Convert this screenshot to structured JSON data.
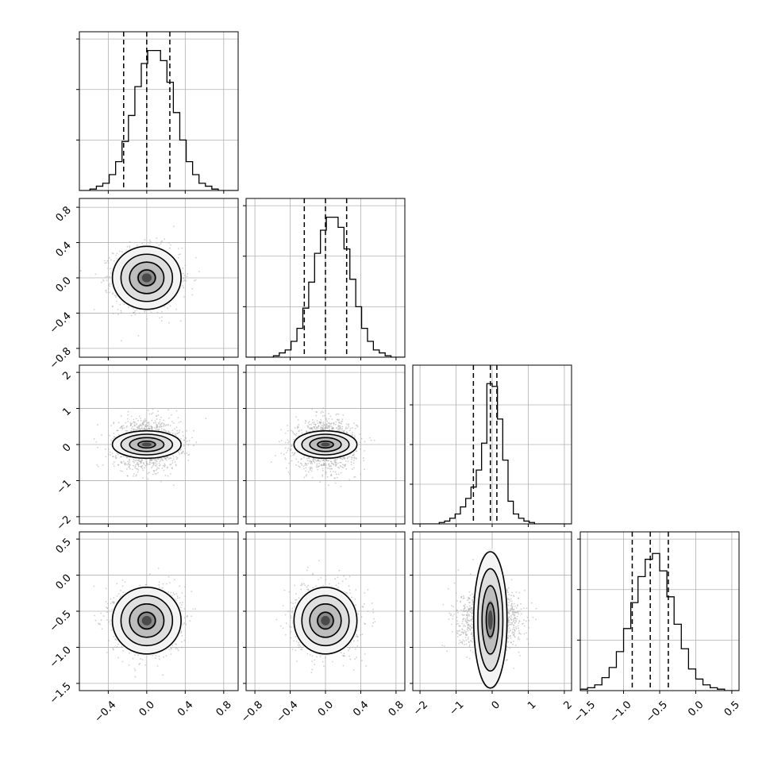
{
  "chart_data": {
    "type": "corner",
    "title": "",
    "ndim": 4,
    "params": [
      {
        "range": [
          -0.7,
          0.95
        ],
        "xticks": [
          -0.4,
          0.0,
          0.4,
          0.8
        ],
        "xtick_labels": [
          "−0.4",
          "0.0",
          "0.4",
          "0.8"
        ],
        "yticks": [
          -0.8,
          -0.4,
          0.0,
          0.4,
          0.8
        ],
        "ytick_labels": [
          "−0.8",
          "−0.4",
          "0.0",
          "0.4",
          "0.8"
        ],
        "mean": 0.0,
        "sigma": 0.17,
        "quantiles": [
          -0.24,
          0.0,
          0.24
        ]
      },
      {
        "range": [
          -0.9,
          0.9
        ],
        "xticks": [
          -0.8,
          -0.4,
          0.0,
          0.4,
          0.8
        ],
        "xtick_labels": [
          "−0.8",
          "−0.4",
          "0.0",
          "0.4",
          "0.8"
        ],
        "yticks": [
          -2,
          -1,
          0,
          1,
          2
        ],
        "ytick_labels": [
          "−2",
          "−1",
          "0",
          "1",
          "2"
        ],
        "mean": 0.0,
        "sigma": 0.17,
        "quantiles": [
          -0.24,
          0.0,
          0.24
        ]
      },
      {
        "range": [
          -2.2,
          2.2
        ],
        "xticks": [
          -2,
          -1,
          0,
          1,
          2
        ],
        "xtick_labels": [
          "−2",
          "−1",
          "0",
          "1",
          "2"
        ],
        "yticks": [
          -1.5,
          -1.0,
          -0.5,
          0.0,
          0.5
        ],
        "ytick_labels": [
          "−1.5",
          "−1.0",
          "−0.5",
          "0.0",
          "0.5"
        ],
        "mean": 0.0,
        "sigma": 0.33,
        "quantiles": [
          -0.52,
          -0.05,
          0.13
        ]
      },
      {
        "range": [
          -1.6,
          0.6
        ],
        "xticks": [
          -1.5,
          -1.0,
          -0.5,
          0.0,
          0.5
        ],
        "xtick_labels": [
          "−1.5",
          "−1.0",
          "−0.5",
          "0.0",
          "0.5"
        ],
        "mean": -0.63,
        "sigma": 0.22,
        "quantiles": [
          -0.88,
          -0.63,
          -0.38
        ]
      }
    ],
    "histograms": [
      {
        "param": 0,
        "bin_range": [
          -0.99,
          1.01
        ],
        "counts": [
          0,
          0,
          0,
          0,
          0,
          0,
          1,
          3,
          5,
          11,
          20,
          34,
          52,
          72,
          88,
          97,
          97,
          90,
          75,
          54,
          35,
          20,
          11,
          5,
          3,
          1,
          0,
          0,
          0,
          0
        ],
        "ymax": 110,
        "yticks": [
          35,
          70,
          105
        ]
      },
      {
        "param": 1,
        "bin_range": [
          -0.99,
          1.01
        ],
        "counts": [
          0,
          0,
          0,
          0,
          0,
          0,
          1,
          3,
          5,
          11,
          20,
          34,
          52,
          72,
          88,
          97,
          97,
          90,
          75,
          54,
          35,
          20,
          11,
          5,
          3,
          1,
          0,
          0,
          0,
          0
        ],
        "ymax": 110,
        "yticks": [
          35,
          70,
          105
        ]
      },
      {
        "param": 2,
        "bin_range": [
          -2.2,
          2.2
        ],
        "counts": [
          0,
          0,
          0,
          0,
          0,
          1,
          2,
          4,
          7,
          12,
          18,
          26,
          38,
          57,
          99,
          97,
          74,
          45,
          16,
          7,
          4,
          2,
          1,
          0,
          0,
          0,
          0,
          0,
          0,
          0
        ],
        "ymax": 112,
        "yticks": [
          28,
          56,
          84
        ]
      },
      {
        "param": 3,
        "bin_range": [
          -1.6,
          0.6
        ],
        "counts": [
          1,
          2,
          4,
          9,
          16,
          27,
          43,
          61,
          79,
          91,
          95,
          83,
          65,
          46,
          29,
          15,
          8,
          4,
          2,
          1,
          0,
          0
        ],
        "ymax": 110,
        "yticks": [
          35,
          70,
          105
        ]
      }
    ],
    "pairs": [
      {
        "row": 1,
        "col": 0,
        "corr": 0.0,
        "sigma_y": 0.17,
        "mean_y": 0.0
      },
      {
        "row": 2,
        "col": 0,
        "corr": 0.0,
        "sigma_y": 0.33,
        "mean_y": 0.0
      },
      {
        "row": 2,
        "col": 1,
        "corr": 0.0,
        "sigma_y": 0.33,
        "mean_y": 0.0
      },
      {
        "row": 3,
        "col": 0,
        "corr": 0.0,
        "sigma_y": 0.22,
        "mean_y": -0.63
      },
      {
        "row": 3,
        "col": 1,
        "corr": 0.0,
        "sigma_y": 0.22,
        "mean_y": -0.63
      },
      {
        "row": 3,
        "col": 2,
        "corr": 0.0,
        "sigma_y": 0.22,
        "mean_y": -0.63
      }
    ],
    "contour_levels_sigma": [
      0.5,
      1.0,
      1.5,
      2.0
    ],
    "grid": true,
    "colors": {
      "line": "#000000",
      "grid": "#b0b0b0",
      "points": "#a8a8a8"
    }
  }
}
